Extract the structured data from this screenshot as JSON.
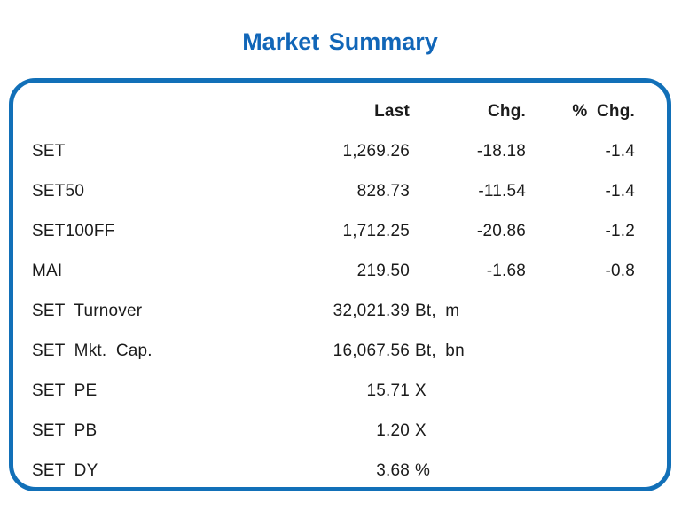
{
  "page": {
    "title": "Market Summary"
  },
  "colors": {
    "accent": "#1270b8",
    "title": "#1166b8",
    "text": "#1b1b1b",
    "background": "#ffffff"
  },
  "table": {
    "headers": {
      "last": "Last",
      "chg": "Chg.",
      "pct_chg": "% Chg."
    },
    "rows": [
      {
        "label": "SET",
        "last": "1,269.26",
        "unit": "",
        "chg": "-18.18",
        "pct": "-1.4"
      },
      {
        "label": "SET50",
        "last": "828.73",
        "unit": "",
        "chg": "-11.54",
        "pct": "-1.4"
      },
      {
        "label": "SET100FF",
        "last": "1,712.25",
        "unit": "",
        "chg": "-20.86",
        "pct": "-1.2"
      },
      {
        "label": "MAI",
        "last": "219.50",
        "unit": "",
        "chg": "-1.68",
        "pct": "-0.8"
      },
      {
        "label": "SET Turnover",
        "last": "32,021.39",
        "unit": "Bt, m",
        "chg": "",
        "pct": ""
      },
      {
        "label": "SET Mkt. Cap.",
        "last": "16,067.56",
        "unit": "Bt, bn",
        "chg": "",
        "pct": ""
      },
      {
        "label": "SET PE",
        "last": "15.71",
        "unit": "X",
        "chg": "",
        "pct": ""
      },
      {
        "label": "SET PB",
        "last": "1.20",
        "unit": "X",
        "chg": "",
        "pct": ""
      },
      {
        "label": "SET DY",
        "last": "3.68",
        "unit": "%",
        "chg": "",
        "pct": ""
      }
    ]
  }
}
